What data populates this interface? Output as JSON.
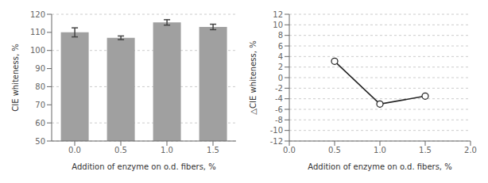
{
  "chart_data": [
    {
      "type": "bar",
      "categories": [
        "0.0",
        "0.5",
        "1.0",
        "1.5"
      ],
      "values": [
        110.0,
        107.0,
        115.5,
        113.0
      ],
      "errors": [
        2.5,
        1.0,
        1.5,
        1.5
      ],
      "color": "#a0a0a0",
      "xlabel": "Addition of enzyme on o.d. fibers, %",
      "ylabel": "CIE whiteness, %",
      "ylim": [
        50,
        120
      ],
      "yticks": [
        50,
        60,
        70,
        80,
        90,
        100,
        110,
        120
      ],
      "grid": true
    },
    {
      "type": "line",
      "x": [
        0.5,
        1.0,
        1.5
      ],
      "values": [
        3.1,
        -5.0,
        -3.5
      ],
      "color": "#222222",
      "marker": "circle",
      "xlabel": "Addition of enzyme on o.d. fibers, %",
      "ylabel": "△CIE whiteness, %",
      "xlim": [
        0.0,
        2.0
      ],
      "xticks": [
        {
          "value": 0,
          "label": "0.0"
        },
        0.5,
        {
          "value": 1,
          "label": "1.0"
        },
        1.5,
        {
          "value": 2,
          "label": "2.0"
        }
      ],
      "ylim": [
        -12,
        12
      ],
      "yticks": [
        -12,
        -10,
        -8,
        -6,
        -4,
        -2,
        0,
        2,
        4,
        6,
        8,
        10,
        12
      ],
      "grid": true
    }
  ]
}
